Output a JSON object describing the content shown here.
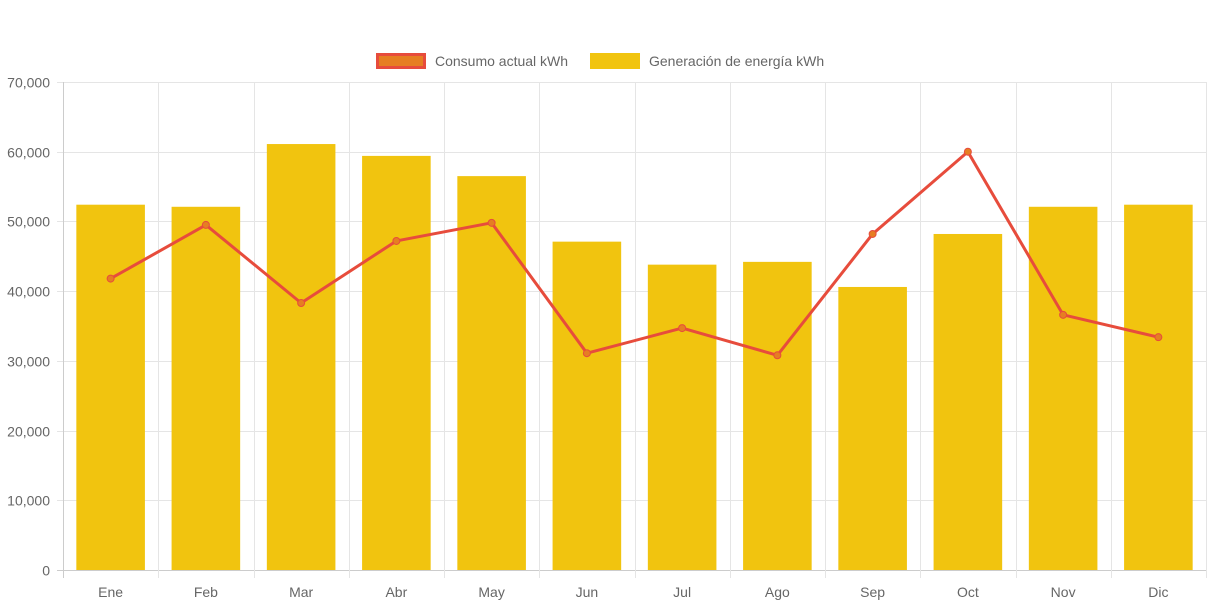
{
  "chart_data": {
    "type": "bar",
    "title": "",
    "xlabel": "",
    "ylabel": "",
    "ylim": [
      0,
      70000
    ],
    "ytick_step": 10000,
    "yticks": [
      "0",
      "10,000",
      "20,000",
      "30,000",
      "40,000",
      "50,000",
      "60,000",
      "70,000"
    ],
    "grid": true,
    "legend_position": "top-center",
    "categories": [
      "Ene",
      "Feb",
      "Mar",
      "Abr",
      "May",
      "Jun",
      "Jul",
      "Ago",
      "Sep",
      "Oct",
      "Nov",
      "Dic"
    ],
    "series": [
      {
        "name": "Consumo actual kWh",
        "type": "line",
        "color": "#e74c3c",
        "point_color": "#e67e22",
        "values": [
          41800,
          49500,
          38300,
          47200,
          49800,
          31100,
          34700,
          30800,
          48200,
          60000,
          36600,
          33400
        ]
      },
      {
        "name": "Generación de energía kWh",
        "type": "bar",
        "color": "#f1c40f",
        "values": [
          52400,
          52100,
          61100,
          59400,
          56500,
          47100,
          43800,
          44200,
          40600,
          48200,
          52100,
          52400
        ]
      }
    ]
  },
  "colors": {
    "grid": "#e5e5e5",
    "axis": "#cccccc",
    "text": "#666666"
  }
}
